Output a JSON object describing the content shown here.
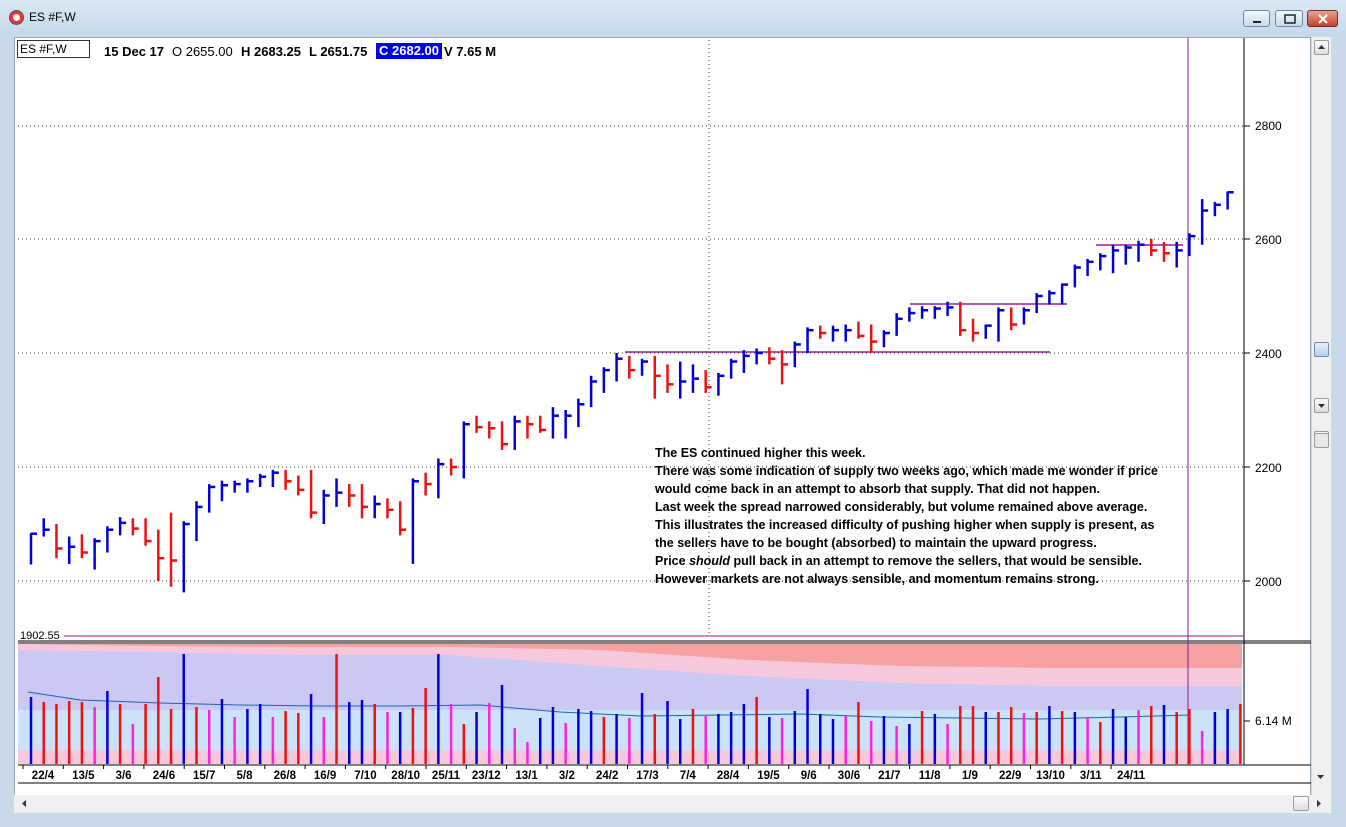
{
  "window": {
    "title": "ES #F,W"
  },
  "header": {
    "symbol": "ES #F,W",
    "date": "15 Dec 17",
    "open": "O 2655.00",
    "high": "H 2683.25",
    "low": "L 2651.75",
    "close": "C 2682.00",
    "volume": "V 7.65 M"
  },
  "annotation": {
    "lines": [
      "The ES continued higher this week.",
      "There was some indication of supply two weeks ago, which made me wonder if price",
      "would come back in an attempt to absorb that supply.  That did not happen.",
      "Last week the spread narrowed considerably, but volume remained above average.",
      "This illustrates the increased difficulty of pushing higher when supply is present, as",
      "the sellers have to be bought (absorbed) to maintain the upward progress."
    ],
    "line7_pre": "Price ",
    "line7_em": "should",
    "line7_post": " pull back in an attempt to remove the sellers, that would be sensible.",
    "line8": "However markets are not always sensible, and momentum remains strong."
  },
  "low_label": "1902.55",
  "volume_label": "6.14 M",
  "colors": {
    "up": "#0000dd",
    "down": "#ee1111",
    "vol_pink": "#ff22dd",
    "level_line": "#9a1a9a",
    "header_highlight": "#0000ee"
  },
  "chart_data": {
    "type": "bar",
    "price_axis": {
      "ticks": [
        2000,
        2200,
        2400,
        2600,
        2800
      ],
      "range": [
        1902.55,
        2920
      ]
    },
    "volume_axis": {
      "label": "6.14 M"
    },
    "x_labels": [
      "22/4",
      "13/5",
      "3/6",
      "24/6",
      "15/7",
      "5/8",
      "26/8",
      "16/9",
      "7/10",
      "28/10",
      "25/11",
      "23/12",
      "13/1",
      "3/2",
      "24/2",
      "17/3",
      "7/4",
      "28/4",
      "19/5",
      "9/6",
      "30/6",
      "21/7",
      "11/8",
      "1/9",
      "22/9",
      "13/10",
      "3/11",
      "24/11"
    ],
    "ohlc": [
      [
        2057,
        2084,
        2029,
        2083
      ],
      [
        2082,
        2110,
        2078,
        2090
      ],
      [
        2092,
        2100,
        2040,
        2057
      ],
      [
        2057,
        2078,
        2030,
        2060
      ],
      [
        2060,
        2082,
        2040,
        2050
      ],
      [
        2050,
        2075,
        2020,
        2070
      ],
      [
        2070,
        2096,
        2050,
        2090
      ],
      [
        2090,
        2112,
        2080,
        2102
      ],
      [
        2102,
        2110,
        2080,
        2092
      ],
      [
        2092,
        2110,
        2062,
        2070
      ],
      [
        2070,
        2090,
        2000,
        2040
      ],
      [
        2040,
        2120,
        1990,
        2036
      ],
      [
        2036,
        2105,
        1980,
        2100
      ],
      [
        2100,
        2140,
        2070,
        2130
      ],
      [
        2130,
        2170,
        2120,
        2165
      ],
      [
        2165,
        2176,
        2140,
        2168
      ],
      [
        2168,
        2176,
        2155,
        2170
      ],
      [
        2170,
        2180,
        2155,
        2175
      ],
      [
        2175,
        2188,
        2165,
        2183
      ],
      [
        2183,
        2195,
        2165,
        2190
      ],
      [
        2190,
        2195,
        2160,
        2175
      ],
      [
        2175,
        2185,
        2150,
        2160
      ],
      [
        2160,
        2195,
        2110,
        2120
      ],
      [
        2120,
        2160,
        2100,
        2150
      ],
      [
        2150,
        2180,
        2130,
        2155
      ],
      [
        2155,
        2170,
        2130,
        2150
      ],
      [
        2150,
        2170,
        2110,
        2130
      ],
      [
        2130,
        2150,
        2110,
        2135
      ],
      [
        2135,
        2145,
        2110,
        2125
      ],
      [
        2125,
        2140,
        2080,
        2090
      ],
      [
        2090,
        2180,
        2030,
        2175
      ],
      [
        2175,
        2190,
        2150,
        2170
      ],
      [
        2170,
        2215,
        2145,
        2205
      ],
      [
        2205,
        2215,
        2185,
        2200
      ],
      [
        2200,
        2280,
        2180,
        2275
      ],
      [
        2275,
        2290,
        2260,
        2270
      ],
      [
        2270,
        2280,
        2250,
        2268
      ],
      [
        2268,
        2280,
        2230,
        2240
      ],
      [
        2240,
        2290,
        2230,
        2280
      ],
      [
        2280,
        2290,
        2250,
        2275
      ],
      [
        2275,
        2290,
        2260,
        2265
      ],
      [
        2265,
        2305,
        2250,
        2290
      ],
      [
        2290,
        2300,
        2250,
        2290
      ],
      [
        2290,
        2320,
        2270,
        2310
      ],
      [
        2310,
        2360,
        2305,
        2350
      ],
      [
        2350,
        2375,
        2330,
        2370
      ],
      [
        2370,
        2400,
        2350,
        2390
      ],
      [
        2390,
        2395,
        2355,
        2370
      ],
      [
        2370,
        2390,
        2360,
        2385
      ],
      [
        2385,
        2395,
        2320,
        2360
      ],
      [
        2360,
        2380,
        2330,
        2345
      ],
      [
        2345,
        2385,
        2320,
        2350
      ],
      [
        2350,
        2380,
        2330,
        2355
      ],
      [
        2355,
        2370,
        2330,
        2340
      ],
      [
        2340,
        2365,
        2325,
        2360
      ],
      [
        2360,
        2390,
        2355,
        2385
      ],
      [
        2385,
        2405,
        2365,
        2395
      ],
      [
        2395,
        2408,
        2380,
        2400
      ],
      [
        2400,
        2410,
        2380,
        2390
      ],
      [
        2390,
        2405,
        2345,
        2380
      ],
      [
        2380,
        2420,
        2375,
        2415
      ],
      [
        2415,
        2445,
        2400,
        2440
      ],
      [
        2440,
        2448,
        2425,
        2435
      ],
      [
        2435,
        2448,
        2420,
        2440
      ],
      [
        2440,
        2450,
        2420,
        2440
      ],
      [
        2440,
        2455,
        2425,
        2430
      ],
      [
        2430,
        2450,
        2400,
        2420
      ],
      [
        2420,
        2440,
        2410,
        2435
      ],
      [
        2435,
        2470,
        2430,
        2460
      ],
      [
        2460,
        2480,
        2455,
        2470
      ],
      [
        2470,
        2482,
        2460,
        2475
      ],
      [
        2475,
        2482,
        2460,
        2478
      ],
      [
        2478,
        2490,
        2465,
        2480
      ],
      [
        2480,
        2490,
        2430,
        2440
      ],
      [
        2440,
        2460,
        2420,
        2435
      ],
      [
        2435,
        2450,
        2425,
        2448
      ],
      [
        2448,
        2480,
        2420,
        2475
      ],
      [
        2475,
        2480,
        2440,
        2450
      ],
      [
        2450,
        2480,
        2450,
        2475
      ],
      [
        2475,
        2505,
        2470,
        2500
      ],
      [
        2500,
        2510,
        2485,
        2505
      ],
      [
        2505,
        2522,
        2485,
        2520
      ],
      [
        2520,
        2555,
        2515,
        2550
      ],
      [
        2550,
        2565,
        2535,
        2560
      ],
      [
        2560,
        2575,
        2545,
        2570
      ],
      [
        2570,
        2590,
        2540,
        2580
      ],
      [
        2580,
        2590,
        2555,
        2585
      ],
      [
        2585,
        2597,
        2560,
        2590
      ],
      [
        2590,
        2600,
        2570,
        2580
      ],
      [
        2580,
        2595,
        2560,
        2575
      ],
      [
        2575,
        2595,
        2550,
        2580
      ],
      [
        2580,
        2610,
        2570,
        2605
      ],
      [
        2605,
        2670,
        2590,
        2650
      ],
      [
        2650,
        2665,
        2640,
        2660
      ],
      [
        2655,
        2683.25,
        2651.75,
        2682
      ]
    ],
    "volume": [
      [
        67,
        "b"
      ],
      [
        62,
        "r"
      ],
      [
        60,
        "r"
      ],
      [
        63,
        "r"
      ],
      [
        62,
        "r"
      ],
      [
        57,
        "p"
      ],
      [
        73,
        "b"
      ],
      [
        60,
        "r"
      ],
      [
        40,
        "p"
      ],
      [
        60,
        "r"
      ],
      [
        87,
        "r"
      ],
      [
        55,
        "r"
      ],
      [
        110,
        "b"
      ],
      [
        57,
        "r"
      ],
      [
        54,
        "p"
      ],
      [
        65,
        "b"
      ],
      [
        47,
        "p"
      ],
      [
        55,
        "b"
      ],
      [
        60,
        "b"
      ],
      [
        47,
        "p"
      ],
      [
        53,
        "r"
      ],
      [
        51,
        "r"
      ],
      [
        70,
        "b"
      ],
      [
        47,
        "p"
      ],
      [
        110,
        "r"
      ],
      [
        62,
        "b"
      ],
      [
        64,
        "b"
      ],
      [
        60,
        "r"
      ],
      [
        52,
        "p"
      ],
      [
        52,
        "b"
      ],
      [
        56,
        "r"
      ],
      [
        76,
        "r"
      ],
      [
        110,
        "b"
      ],
      [
        60,
        "p"
      ],
      [
        40,
        "r"
      ],
      [
        52,
        "b"
      ],
      [
        61,
        "p"
      ],
      [
        79,
        "b"
      ],
      [
        36,
        "p"
      ],
      [
        22,
        "p"
      ],
      [
        46,
        "b"
      ],
      [
        57,
        "b"
      ],
      [
        41,
        "p"
      ],
      [
        55,
        "b"
      ],
      [
        53,
        "b"
      ],
      [
        47,
        "r"
      ],
      [
        50,
        "b"
      ],
      [
        46,
        "p"
      ],
      [
        71,
        "b"
      ],
      [
        50,
        "r"
      ],
      [
        63,
        "b"
      ],
      [
        45,
        "b"
      ],
      [
        55,
        "r"
      ],
      [
        48,
        "p"
      ],
      [
        50,
        "b"
      ],
      [
        52,
        "b"
      ],
      [
        60,
        "b"
      ],
      [
        67,
        "r"
      ],
      [
        47,
        "b"
      ],
      [
        46,
        "p"
      ],
      [
        53,
        "b"
      ],
      [
        75,
        "b"
      ],
      [
        50,
        "b"
      ],
      [
        45,
        "b"
      ],
      [
        48,
        "p"
      ],
      [
        62,
        "r"
      ],
      [
        43,
        "p"
      ],
      [
        48,
        "b"
      ],
      [
        38,
        "p"
      ],
      [
        40,
        "b"
      ],
      [
        53,
        "r"
      ],
      [
        50,
        "b"
      ],
      [
        40,
        "p"
      ],
      [
        58,
        "r"
      ],
      [
        58,
        "r"
      ],
      [
        52,
        "b"
      ],
      [
        52,
        "r"
      ],
      [
        57,
        "r"
      ],
      [
        51,
        "p"
      ],
      [
        52,
        "r"
      ],
      [
        58,
        "b"
      ],
      [
        53,
        "r"
      ],
      [
        52,
        "b"
      ],
      [
        47,
        "p"
      ],
      [
        42,
        "r"
      ],
      [
        55,
        "b"
      ],
      [
        47,
        "b"
      ],
      [
        54,
        "p"
      ],
      [
        58,
        "r"
      ],
      [
        59,
        "b"
      ],
      [
        52,
        "r"
      ],
      [
        55,
        "r"
      ],
      [
        33,
        "p"
      ],
      [
        52,
        "b"
      ],
      [
        55,
        "b"
      ],
      [
        60,
        "r"
      ]
    ]
  }
}
